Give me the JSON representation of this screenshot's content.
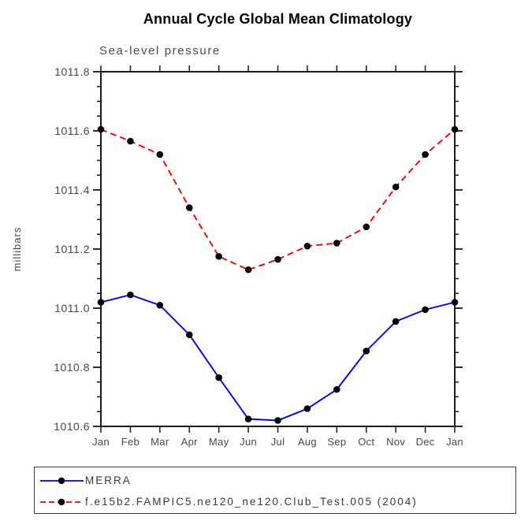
{
  "chart_data": {
    "type": "line",
    "title": "Annual Cycle Global Mean Climatology",
    "subtitle": "Sea-level pressure",
    "xlabel": "",
    "ylabel": "millibars",
    "categories": [
      "Jan",
      "Feb",
      "Mar",
      "Apr",
      "May",
      "Jun",
      "Jul",
      "Aug",
      "Sep",
      "Oct",
      "Nov",
      "Dec",
      "Jan"
    ],
    "ylim": [
      1010.6,
      1011.8
    ],
    "ytick_step": 0.2,
    "yminor_step": 0.05,
    "yticks": [
      "1011.8",
      "1011.6",
      "1011.4",
      "1011.2",
      "1011.0",
      "1010.8",
      "1010.6"
    ],
    "grid": false,
    "legend_position": "bottom-left-box",
    "marker_color": "#000000",
    "axis_color": "#1a1a1a",
    "label_color": "#474747",
    "series": [
      {
        "name": "MERRA",
        "color": "#0000f5",
        "style": "solid",
        "values": [
          1011.02,
          1011.045,
          1011.01,
          1010.91,
          1010.765,
          1010.625,
          1010.62,
          1010.66,
          1010.725,
          1010.855,
          1010.955,
          1010.995,
          1011.02
        ]
      },
      {
        "name": "f.e15b2.FAMPIC5.ne120_ne120.Club_Test.005 (2004)",
        "color": "#f50000",
        "style": "dashed",
        "values": [
          1011.605,
          1011.565,
          1011.52,
          1011.34,
          1011.175,
          1011.13,
          1011.165,
          1011.21,
          1011.22,
          1011.275,
          1011.41,
          1011.52,
          1011.605
        ]
      }
    ]
  }
}
